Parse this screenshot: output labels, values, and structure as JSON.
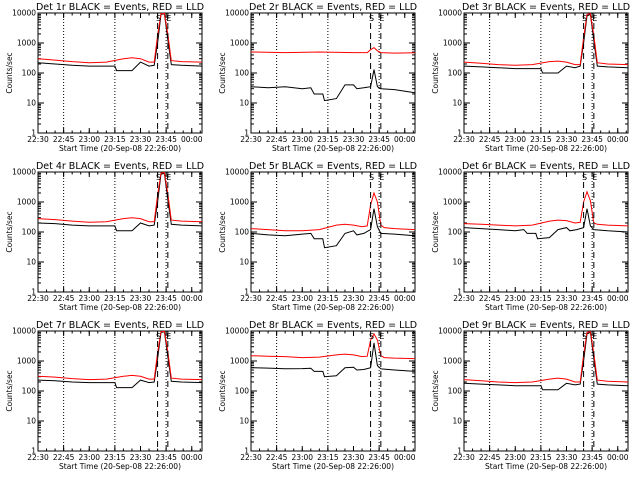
{
  "colors": {
    "events": "#000000",
    "lld": "#ff0000",
    "background": "#ffffff"
  },
  "x_tick_labels": [
    "22:30",
    "22:45",
    "23:00",
    "23:15",
    "23:30",
    "23:45",
    "00:00"
  ],
  "y_tick_labels": [
    "1",
    "10",
    "100",
    "1000",
    "10000"
  ],
  "xlabel": "Start Time (20-Sep-08 22:26:00)",
  "ylabel": "Counts/sec",
  "annotations": {
    "start": "S",
    "end": "E"
  },
  "chart_data": [
    {
      "type": "line",
      "title": "Det 1r BLACK = Events, RED = LLD",
      "x_unit": "minutes after 22:30",
      "xlim": [
        0,
        96
      ],
      "ylim": [
        1,
        10000
      ],
      "yscale": "log",
      "vlines_dotted": [
        15,
        45,
        75
      ],
      "vlines_dashed": [
        70,
        76
      ],
      "series": [
        {
          "color": "events",
          "x": [
            0,
            10,
            20,
            30,
            40,
            45,
            46,
            55,
            60,
            65,
            68,
            70,
            72,
            74,
            76,
            78,
            84,
            96
          ],
          "y": [
            220,
            200,
            180,
            170,
            170,
            170,
            120,
            120,
            230,
            170,
            180,
            1000,
            9000,
            9500,
            1300,
            190,
            180,
            170
          ]
        },
        {
          "color": "lld",
          "x": [
            0,
            10,
            20,
            30,
            40,
            50,
            55,
            60,
            65,
            68,
            70,
            72,
            74,
            76,
            78,
            84,
            96
          ],
          "y": [
            300,
            270,
            240,
            220,
            230,
            300,
            320,
            300,
            230,
            230,
            1800,
            9500,
            9800,
            2000,
            260,
            240,
            230
          ]
        }
      ]
    },
    {
      "type": "line",
      "title": "Det 2r BLACK = Events, RED = LLD",
      "x_unit": "minutes after 22:30",
      "xlim": [
        0,
        96
      ],
      "ylim": [
        1,
        10000
      ],
      "yscale": "log",
      "vlines_dotted": [
        15,
        45,
        75
      ],
      "vlines_dashed": [
        70,
        76
      ],
      "series": [
        {
          "color": "events",
          "x": [
            0,
            10,
            20,
            30,
            35,
            37,
            42,
            43,
            50,
            55,
            60,
            62,
            66,
            70,
            72,
            74,
            76,
            84,
            96
          ],
          "y": [
            35,
            32,
            35,
            30,
            32,
            20,
            20,
            12,
            14,
            40,
            40,
            30,
            32,
            35,
            130,
            35,
            30,
            28,
            22
          ]
        },
        {
          "color": "lld",
          "x": [
            0,
            20,
            40,
            60,
            68,
            70,
            72,
            74,
            76,
            84,
            96
          ],
          "y": [
            500,
            480,
            500,
            480,
            480,
            600,
            700,
            550,
            480,
            460,
            470
          ]
        }
      ]
    },
    {
      "type": "line",
      "title": "Det 3r BLACK = Events, RED = LLD",
      "x_unit": "minutes after 22:30",
      "xlim": [
        0,
        96
      ],
      "ylim": [
        1,
        10000
      ],
      "yscale": "log",
      "vlines_dotted": [
        15,
        45,
        75
      ],
      "vlines_dashed": [
        70,
        76
      ],
      "series": [
        {
          "color": "events",
          "x": [
            0,
            10,
            20,
            30,
            40,
            45,
            46,
            55,
            60,
            65,
            68,
            70,
            72,
            74,
            76,
            78,
            84,
            96
          ],
          "y": [
            170,
            160,
            150,
            140,
            140,
            140,
            100,
            100,
            170,
            150,
            170,
            1000,
            8000,
            9000,
            1200,
            170,
            160,
            150
          ]
        },
        {
          "color": "lld",
          "x": [
            0,
            10,
            20,
            30,
            40,
            50,
            55,
            60,
            65,
            68,
            70,
            72,
            74,
            76,
            78,
            84,
            96
          ],
          "y": [
            230,
            210,
            190,
            180,
            190,
            240,
            250,
            230,
            190,
            190,
            1500,
            9000,
            9500,
            1800,
            220,
            200,
            190
          ]
        }
      ]
    },
    {
      "type": "line",
      "title": "Det 4r BLACK = Events, RED = LLD",
      "x_unit": "minutes after 22:30",
      "xlim": [
        0,
        96
      ],
      "ylim": [
        1,
        10000
      ],
      "yscale": "log",
      "vlines_dotted": [
        15,
        45,
        75
      ],
      "vlines_dashed": [
        70,
        76
      ],
      "series": [
        {
          "color": "events",
          "x": [
            0,
            10,
            20,
            30,
            40,
            45,
            46,
            55,
            60,
            65,
            68,
            70,
            72,
            74,
            76,
            78,
            84,
            96
          ],
          "y": [
            200,
            190,
            170,
            160,
            160,
            160,
            110,
            110,
            200,
            160,
            170,
            1000,
            8500,
            9000,
            1200,
            180,
            170,
            160
          ]
        },
        {
          "color": "lld",
          "x": [
            0,
            10,
            20,
            30,
            40,
            50,
            55,
            60,
            65,
            68,
            70,
            72,
            74,
            76,
            78,
            84,
            96
          ],
          "y": [
            280,
            260,
            230,
            210,
            220,
            280,
            300,
            280,
            220,
            220,
            1700,
            9200,
            9600,
            1900,
            250,
            230,
            220
          ]
        }
      ]
    },
    {
      "type": "line",
      "title": "Det 5r BLACK = Events, RED = LLD",
      "x_unit": "minutes after 22:30",
      "xlim": [
        0,
        96
      ],
      "ylim": [
        1,
        10000
      ],
      "yscale": "log",
      "vlines_dotted": [
        15,
        45,
        75
      ],
      "vlines_dashed": [
        70,
        76
      ],
      "series": [
        {
          "color": "events",
          "x": [
            0,
            10,
            20,
            30,
            35,
            37,
            42,
            43,
            50,
            55,
            60,
            62,
            66,
            70,
            72,
            74,
            76,
            84,
            96
          ],
          "y": [
            90,
            80,
            75,
            85,
            90,
            60,
            60,
            30,
            35,
            90,
            110,
            80,
            90,
            120,
            600,
            150,
            90,
            85,
            75
          ]
        },
        {
          "color": "lld",
          "x": [
            0,
            10,
            20,
            30,
            40,
            50,
            55,
            60,
            65,
            68,
            70,
            72,
            74,
            76,
            78,
            84,
            96
          ],
          "y": [
            130,
            120,
            110,
            110,
            120,
            170,
            180,
            170,
            150,
            160,
            800,
            2000,
            1000,
            170,
            140,
            130,
            120
          ]
        }
      ]
    },
    {
      "type": "line",
      "title": "Det 6r BLACK = Events, RED = LLD",
      "x_unit": "minutes after 22:30",
      "xlim": [
        0,
        96
      ],
      "ylim": [
        1,
        10000
      ],
      "yscale": "log",
      "vlines_dotted": [
        15,
        45,
        75
      ],
      "vlines_dashed": [
        70,
        76
      ],
      "series": [
        {
          "color": "events",
          "x": [
            0,
            10,
            20,
            30,
            35,
            37,
            42,
            43,
            50,
            55,
            60,
            62,
            66,
            70,
            72,
            74,
            76,
            84,
            96
          ],
          "y": [
            140,
            130,
            120,
            110,
            120,
            90,
            90,
            60,
            65,
            120,
            140,
            110,
            120,
            140,
            600,
            160,
            120,
            110,
            100
          ]
        },
        {
          "color": "lld",
          "x": [
            0,
            10,
            20,
            30,
            40,
            50,
            55,
            60,
            65,
            68,
            70,
            72,
            74,
            76,
            78,
            84,
            96
          ],
          "y": [
            190,
            180,
            170,
            160,
            170,
            230,
            250,
            240,
            200,
            210,
            1000,
            2200,
            1100,
            200,
            180,
            170,
            160
          ]
        }
      ]
    },
    {
      "type": "line",
      "title": "Det 7r BLACK = Events, RED = LLD",
      "x_unit": "minutes after 22:30",
      "xlim": [
        0,
        96
      ],
      "ylim": [
        1,
        10000
      ],
      "yscale": "log",
      "vlines_dotted": [
        15,
        45,
        75
      ],
      "vlines_dashed": [
        70,
        76
      ],
      "series": [
        {
          "color": "events",
          "x": [
            0,
            10,
            20,
            30,
            40,
            45,
            46,
            55,
            60,
            65,
            68,
            70,
            72,
            74,
            76,
            78,
            84,
            96
          ],
          "y": [
            230,
            220,
            200,
            190,
            190,
            190,
            130,
            130,
            230,
            190,
            200,
            1200,
            9000,
            9500,
            1400,
            210,
            200,
            190
          ]
        },
        {
          "color": "lld",
          "x": [
            0,
            10,
            20,
            30,
            40,
            50,
            55,
            60,
            65,
            68,
            70,
            72,
            74,
            76,
            78,
            84,
            96
          ],
          "y": [
            310,
            290,
            260,
            240,
            250,
            310,
            330,
            310,
            250,
            250,
            1900,
            9500,
            9800,
            2100,
            270,
            250,
            240
          ]
        }
      ]
    },
    {
      "type": "line",
      "title": "Det 8r BLACK = Events, RED = LLD",
      "x_unit": "minutes after 22:30",
      "xlim": [
        0,
        96
      ],
      "ylim": [
        1,
        10000
      ],
      "yscale": "log",
      "vlines_dotted": [
        15,
        45,
        75
      ],
      "vlines_dashed": [
        70,
        76
      ],
      "series": [
        {
          "color": "events",
          "x": [
            0,
            10,
            20,
            30,
            35,
            37,
            42,
            43,
            50,
            55,
            60,
            62,
            66,
            70,
            72,
            74,
            76,
            84,
            96
          ],
          "y": [
            600,
            580,
            550,
            560,
            570,
            450,
            450,
            300,
            320,
            600,
            620,
            500,
            520,
            600,
            4000,
            700,
            550,
            500,
            450
          ]
        },
        {
          "color": "lld",
          "x": [
            0,
            10,
            20,
            30,
            40,
            50,
            55,
            60,
            65,
            68,
            70,
            72,
            74,
            76,
            78,
            84,
            96
          ],
          "y": [
            1500,
            1450,
            1400,
            1300,
            1350,
            1600,
            1700,
            1600,
            1400,
            1450,
            5000,
            8000,
            5000,
            1500,
            1300,
            1250,
            1200
          ]
        }
      ]
    },
    {
      "type": "line",
      "title": "Det 9r BLACK = Events, RED = LLD",
      "x_unit": "minutes after 22:30",
      "xlim": [
        0,
        96
      ],
      "ylim": [
        1,
        10000
      ],
      "yscale": "log",
      "vlines_dotted": [
        15,
        45,
        75
      ],
      "vlines_dashed": [
        70,
        76
      ],
      "series": [
        {
          "color": "events",
          "x": [
            0,
            10,
            20,
            30,
            40,
            45,
            46,
            55,
            60,
            65,
            68,
            70,
            72,
            74,
            76,
            78,
            84,
            96
          ],
          "y": [
            180,
            170,
            160,
            150,
            150,
            150,
            110,
            110,
            180,
            160,
            170,
            1000,
            8000,
            9000,
            1200,
            170,
            160,
            150
          ]
        },
        {
          "color": "lld",
          "x": [
            0,
            10,
            20,
            30,
            40,
            50,
            55,
            60,
            65,
            68,
            70,
            72,
            74,
            76,
            78,
            84,
            96
          ],
          "y": [
            240,
            220,
            200,
            190,
            200,
            250,
            270,
            250,
            200,
            200,
            1600,
            9000,
            9500,
            1800,
            230,
            210,
            200
          ]
        }
      ]
    }
  ]
}
